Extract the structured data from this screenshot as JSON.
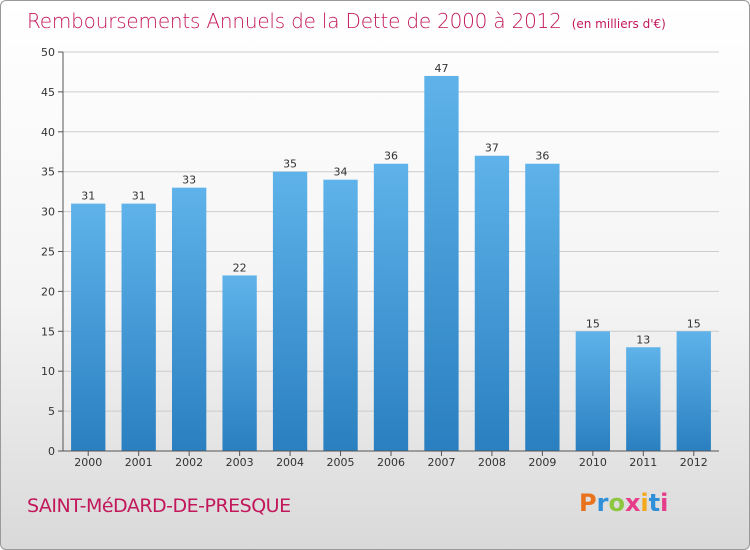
{
  "header": {
    "title": "Remboursements Annuels de la Dette de 2000 à 2012",
    "unit": "(en milliers d'€)"
  },
  "footer": {
    "commune": "SAINT-MéDARD-DE-PRESQUE",
    "logo": "Proxiti",
    "logo_colors": [
      "#e8731c",
      "#2f8fd8",
      "#8dc63f",
      "#e63c8a",
      "#f4a81c",
      "#2f8fd8",
      "#e63c8a"
    ]
  },
  "colors": {
    "bar_top": "#5fb3ea",
    "bar_bottom": "#2a7fc0",
    "title": "#c2185b",
    "grid": "#cccccc",
    "axis": "#555555"
  },
  "chart_data": {
    "type": "bar",
    "title": "Remboursements Annuels de la Dette de 2000 à 2012",
    "subtitle": "(en milliers d'€)",
    "xlabel": "",
    "ylabel": "",
    "categories": [
      "2000",
      "2001",
      "2002",
      "2003",
      "2004",
      "2005",
      "2006",
      "2007",
      "2008",
      "2009",
      "2010",
      "2011",
      "2012"
    ],
    "values": [
      31,
      31,
      33,
      22,
      35,
      34,
      36,
      47,
      37,
      36,
      15,
      13,
      15
    ],
    "ylim": [
      0,
      50
    ],
    "yticks": [
      0,
      5,
      10,
      15,
      20,
      25,
      30,
      35,
      40,
      45,
      50
    ],
    "grid": true,
    "legend": "none"
  }
}
